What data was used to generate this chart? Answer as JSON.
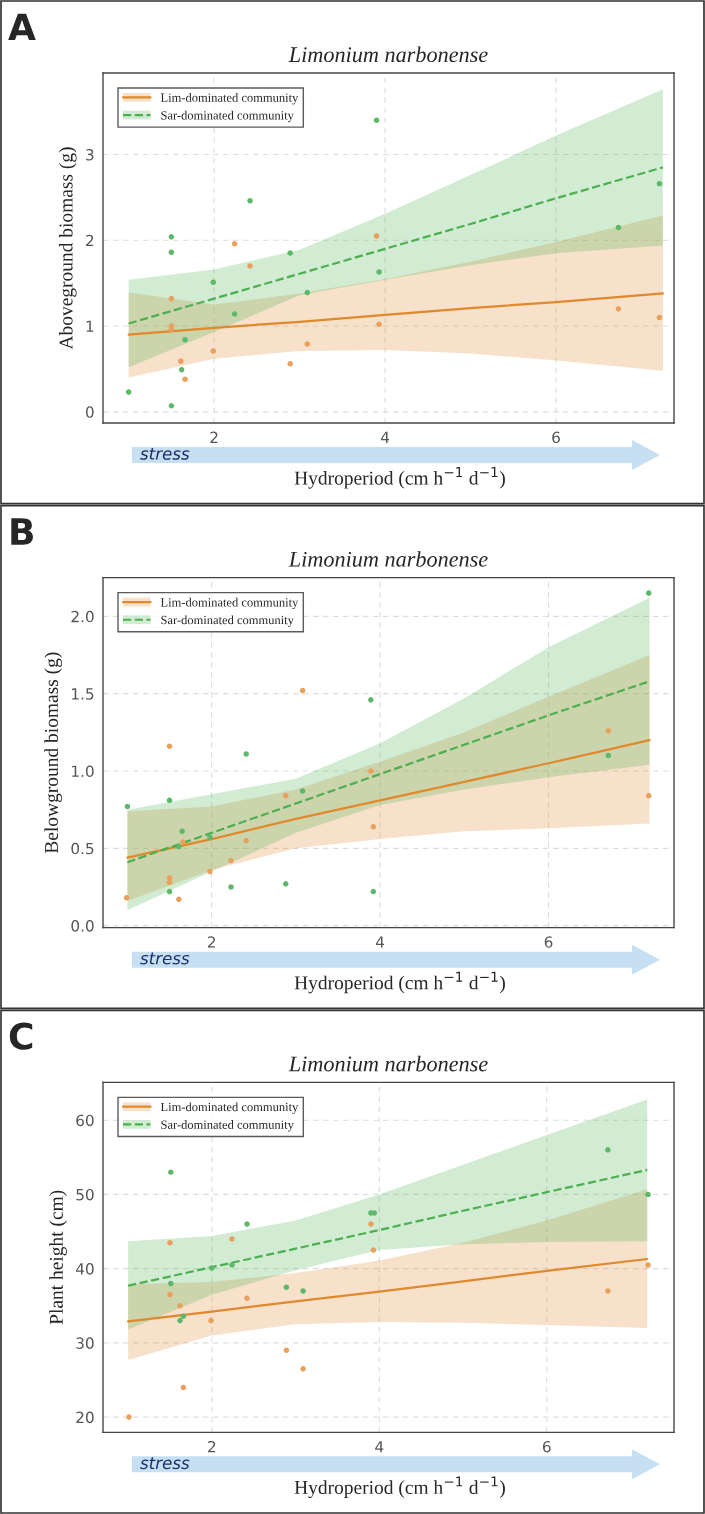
{
  "chart_data": [
    {
      "type": "scatter",
      "title": "Limonium narbonense",
      "xlabel": "Hydroperiod (cm h$^{−1}$ d$^{−1}$)",
      "ylabel": "Aboveground biomass (g)",
      "annotations": [
        "A",
        "stress"
      ],
      "xlim": [
        0.7,
        7.38
      ],
      "xticks": [
        2,
        4,
        6
      ],
      "ylim": [
        -0.13,
        3.95
      ],
      "yticks": [
        0,
        1,
        2,
        3
      ],
      "grid": true,
      "legend": "top left",
      "series": [
        {
          "color": "#e8a05c",
          "marker": "circle",
          "x": [
            1.5,
            1.5,
            1.5,
            1.61,
            1.66,
            1.99,
            2.24,
            2.42,
            2.89,
            3.09,
            3.9,
            3.93,
            6.73,
            7.21
          ],
          "values": [
            1.32,
            1.0,
            0.96,
            0.59,
            0.38,
            0.71,
            1.96,
            1.7,
            0.56,
            0.79,
            2.05,
            1.02,
            1.2,
            1.1
          ]
        },
        {
          "color": "#5cb86a",
          "marker": "circle",
          "x": [
            1.0,
            1.5,
            1.5,
            1.5,
            1.66,
            1.62,
            1.99,
            2.24,
            2.42,
            2.89,
            3.09,
            3.9,
            3.93,
            6.73,
            7.21
          ],
          "values": [
            0.23,
            2.04,
            1.86,
            0.07,
            0.84,
            0.49,
            1.51,
            1.14,
            2.46,
            1.85,
            1.39,
            3.4,
            1.63,
            2.15,
            2.66
          ]
        },
        {
          "type": "line",
          "name": "Lim-dominated community",
          "color": "#e0892c",
          "line_style": "solid",
          "x": [
            1,
            2,
            3,
            4,
            5,
            6,
            7.25
          ],
          "values": [
            0.9,
            0.98,
            1.05,
            1.13,
            1.21,
            1.28,
            1.38
          ],
          "lower": [
            0.4,
            0.62,
            0.71,
            0.72,
            0.68,
            0.6,
            0.48
          ],
          "upper": [
            1.39,
            1.25,
            1.38,
            1.55,
            1.75,
            1.98,
            2.29
          ]
        },
        {
          "type": "line",
          "name": "Sar-dominated community",
          "color": "#4caf50",
          "line_style": "dashed",
          "x": [
            1,
            2,
            3,
            4,
            5,
            6,
            7.25
          ],
          "values": [
            1.03,
            1.32,
            1.61,
            1.9,
            2.19,
            2.49,
            2.85
          ],
          "lower": [
            0.52,
            0.93,
            1.36,
            1.54,
            1.71,
            1.85,
            1.94
          ],
          "upper": [
            1.54,
            1.66,
            1.89,
            2.31,
            2.76,
            3.22,
            3.76
          ]
        }
      ]
    },
    {
      "type": "scatter",
      "title": "Limonium narbonense",
      "xlabel": "Hydroperiod (cm h$^{−1}$ d$^{−1}$)",
      "ylabel": "Belowground biomass (g)",
      "annotations": [
        "B",
        "stress"
      ],
      "xlim": [
        0.71,
        7.49
      ],
      "xticks": [
        2,
        4,
        6
      ],
      "ylim": [
        -0.013,
        2.25
      ],
      "yticks": [
        {
          "value": 0,
          "label": "0.0"
        },
        0.5,
        {
          "value": 1,
          "label": "1.0"
        },
        1.5,
        {
          "value": 2,
          "label": "2.0"
        }
      ],
      "grid": true,
      "legend": "top left",
      "series": [
        {
          "color": "#e8a05c",
          "marker": "circle",
          "x": [
            0.99,
            1.5,
            1.5,
            1.5,
            1.61,
            1.66,
            1.98,
            2.23,
            2.41,
            2.88,
            3.08,
            3.89,
            3.92,
            6.71,
            7.19
          ],
          "values": [
            0.18,
            1.16,
            0.31,
            0.28,
            0.17,
            0.54,
            0.35,
            0.42,
            0.55,
            0.84,
            1.52,
            1.0,
            0.64,
            1.26,
            0.84
          ]
        },
        {
          "color": "#5cb86a",
          "marker": "circle",
          "x": [
            1.0,
            1.5,
            1.5,
            1.61,
            1.65,
            1.98,
            2.23,
            2.41,
            2.88,
            3.08,
            3.89,
            3.92,
            6.71,
            7.19
          ],
          "values": [
            0.77,
            0.81,
            0.22,
            0.51,
            0.61,
            0.57,
            0.25,
            1.11,
            0.27,
            0.87,
            1.46,
            0.22,
            1.1,
            2.15
          ]
        },
        {
          "type": "line",
          "name": "Lim-dominated community",
          "color": "#e0892c",
          "line_style": "solid",
          "x": [
            1,
            2,
            3,
            4,
            5,
            6,
            7.2
          ],
          "values": [
            0.44,
            0.56,
            0.69,
            0.81,
            0.93,
            1.05,
            1.2
          ],
          "lower": [
            0.16,
            0.36,
            0.5,
            0.56,
            0.61,
            0.63,
            0.66
          ],
          "upper": [
            0.74,
            0.77,
            0.88,
            1.06,
            1.25,
            1.48,
            1.75
          ]
        },
        {
          "type": "line",
          "name": "Sar-dominated community",
          "color": "#4caf50",
          "line_style": "dashed",
          "x": [
            1,
            2,
            3,
            4,
            5,
            6,
            7.2
          ],
          "values": [
            0.41,
            0.6,
            0.79,
            0.98,
            1.17,
            1.36,
            1.58
          ],
          "lower": [
            0.1,
            0.35,
            0.6,
            0.78,
            0.88,
            0.96,
            1.04
          ],
          "upper": [
            0.75,
            0.85,
            0.95,
            1.18,
            1.47,
            1.8,
            2.12
          ]
        }
      ]
    },
    {
      "type": "scatter",
      "title": "Limonium narbonense",
      "xlabel": "Hydroperiod (cm h$^{−1}$ d$^{−1}$)",
      "ylabel": "Plant height (cm)",
      "annotations": [
        "C",
        "stress"
      ],
      "xlim": [
        0.7,
        7.52
      ],
      "xticks": [
        2,
        4,
        6
      ],
      "ylim": [
        17.95,
        65.1
      ],
      "yticks": [
        20,
        30,
        40,
        50,
        60
      ],
      "grid": true,
      "legend": "top left",
      "series": [
        {
          "color": "#e8a05c",
          "marker": "circle",
          "x": [
            1.01,
            1.5,
            1.5,
            1.62,
            1.66,
            1.99,
            2.24,
            2.42,
            2.89,
            3.09,
            3.9,
            3.93,
            6.73,
            7.21
          ],
          "values": [
            20.0,
            43.5,
            36.5,
            35.0,
            24.0,
            33.0,
            44.0,
            36.0,
            29.0,
            26.5,
            46.0,
            42.5,
            37.0,
            40.5
          ]
        },
        {
          "color": "#5cb86a",
          "marker": "circle",
          "x": [
            1.51,
            1.51,
            1.62,
            1.66,
            2.0,
            2.24,
            2.42,
            2.89,
            3.09,
            3.9,
            3.94,
            6.73,
            7.21
          ],
          "values": [
            53.0,
            38.0,
            33.0,
            33.6,
            40.1,
            40.5,
            46.0,
            37.5,
            37.0,
            47.5,
            47.5,
            56.0,
            50.0
          ]
        },
        {
          "type": "line",
          "name": "Lim-dominated community",
          "color": "#e0892c",
          "line_style": "solid",
          "x": [
            1,
            2,
            3,
            4,
            5,
            6,
            7.2
          ],
          "values": [
            32.9,
            34.2,
            35.6,
            36.9,
            38.3,
            39.7,
            41.3
          ],
          "lower": [
            27.7,
            31.0,
            32.5,
            32.8,
            32.7,
            32.4,
            32.0
          ],
          "upper": [
            37.9,
            38.2,
            39.4,
            41.1,
            43.5,
            46.5,
            50.7
          ]
        },
        {
          "type": "line",
          "name": "Sar-dominated community",
          "color": "#4caf50",
          "line_style": "dashed",
          "x": [
            1,
            2,
            3,
            4,
            5,
            6,
            7.2
          ],
          "values": [
            37.7,
            40.2,
            42.7,
            45.2,
            47.8,
            50.3,
            53.3
          ],
          "lower": [
            31.8,
            36.5,
            39.8,
            42.5,
            43.3,
            43.6,
            43.7
          ],
          "upper": [
            43.7,
            44.4,
            46.5,
            50.0,
            54.0,
            58.0,
            62.8
          ]
        }
      ]
    }
  ]
}
